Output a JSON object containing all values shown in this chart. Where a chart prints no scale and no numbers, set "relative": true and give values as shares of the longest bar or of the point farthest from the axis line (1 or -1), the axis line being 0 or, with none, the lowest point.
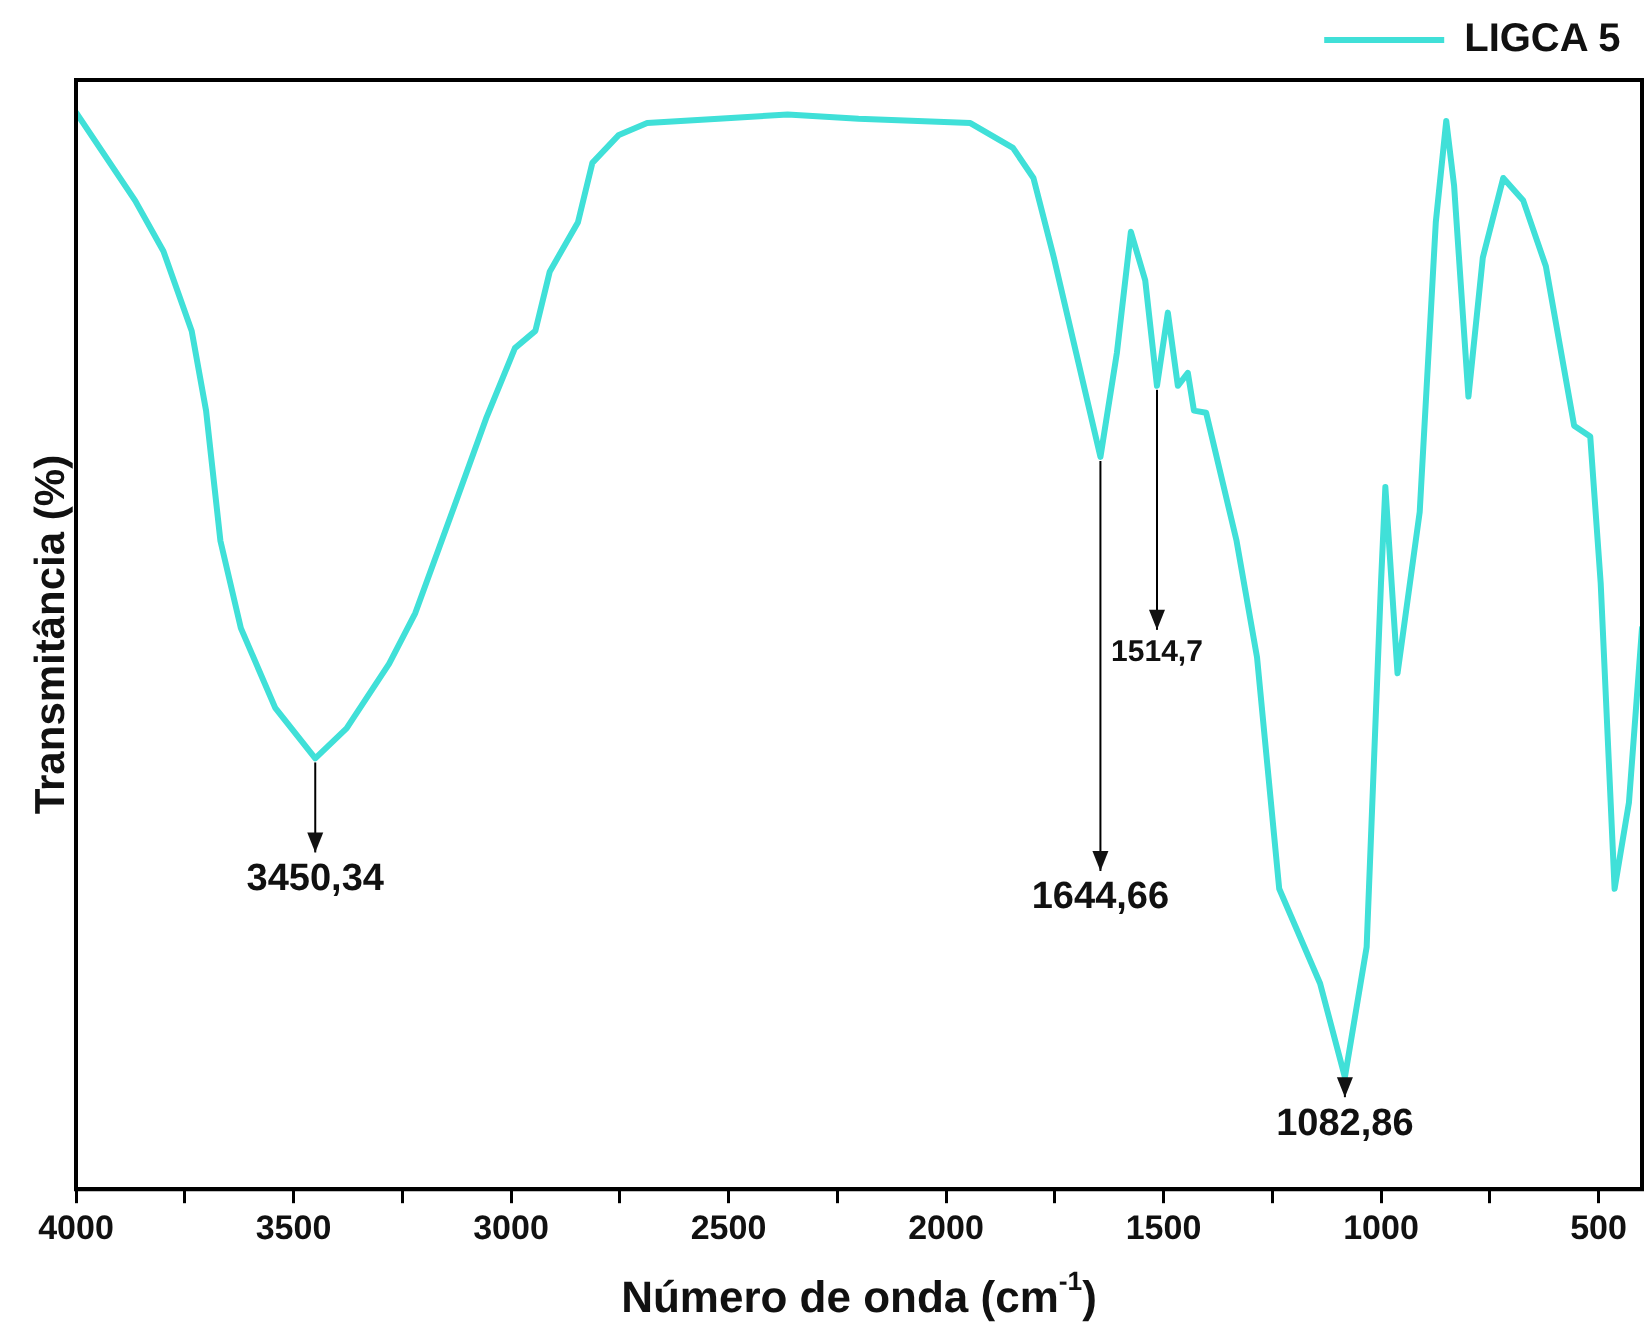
{
  "chart_data": {
    "type": "line",
    "relative": true,
    "xlabel": "Número de onda (cm$^{-1}$)",
    "ylabel": "Transmitância (%)",
    "legend": "top right",
    "grid": false,
    "marker": "none",
    "line_style": "solid",
    "xlim": [
      4000,
      400
    ],
    "xticks": [
      4000,
      {
        "value": 3750,
        "label": null
      },
      3500,
      {
        "value": 3250,
        "label": null
      },
      3000,
      {
        "value": 2750,
        "label": null
      },
      2500,
      {
        "value": 2250,
        "label": null
      },
      2000,
      {
        "value": 1750,
        "label": null
      },
      1500,
      {
        "value": 1250,
        "label": null
      },
      1000,
      {
        "value": 750,
        "label": null
      },
      500
    ],
    "series": [
      {
        "name": "LIGCA 5",
        "color": "#40e0d8",
        "x": [
          4000,
          3864,
          3799,
          3734,
          3701,
          3668,
          3621,
          3542,
          3450,
          3378,
          3280,
          3220,
          3135,
          3056,
          2991,
          2944,
          2911,
          2846,
          2813,
          2752,
          2687,
          2523,
          2364,
          2201,
          1944,
          1846,
          1799,
          1752,
          1701,
          1645,
          1607,
          1575,
          1542,
          1515,
          1490,
          1467,
          1444,
          1430,
          1402,
          1332,
          1285,
          1234,
          1140,
          1083,
          1033,
          1000,
          990,
          962,
          911,
          874,
          850,
          832,
          799,
          766,
          719,
          673,
          621,
          556,
          519,
          495,
          463,
          430,
          400
        ],
        "values": [
          1.0,
          0.918,
          0.871,
          0.797,
          0.723,
          0.602,
          0.521,
          0.447,
          0.4,
          0.428,
          0.488,
          0.535,
          0.629,
          0.717,
          0.781,
          0.797,
          0.852,
          0.898,
          0.953,
          0.979,
          0.99,
          0.994,
          0.998,
          0.994,
          0.99,
          0.967,
          0.939,
          0.865,
          0.777,
          0.68,
          0.777,
          0.889,
          0.844,
          0.746,
          0.814,
          0.746,
          0.758,
          0.723,
          0.721,
          0.602,
          0.494,
          0.279,
          0.191,
          0.104,
          0.225,
          0.563,
          0.652,
          0.479,
          0.629,
          0.898,
          0.992,
          0.932,
          0.736,
          0.865,
          0.939,
          0.918,
          0.857,
          0.709,
          0.699,
          0.563,
          0.279,
          0.359,
          0.521
        ]
      }
    ],
    "annotations": [
      {
        "text": "3450,34",
        "x": 3450,
        "y": 0.4
      },
      {
        "text": "1644,66",
        "x": 1645,
        "y": 0.68
      },
      {
        "text": "1514,7",
        "x": 1515,
        "y": 0.746
      },
      {
        "text": "1082,86",
        "x": 1083,
        "y": 0.104
      }
    ]
  }
}
